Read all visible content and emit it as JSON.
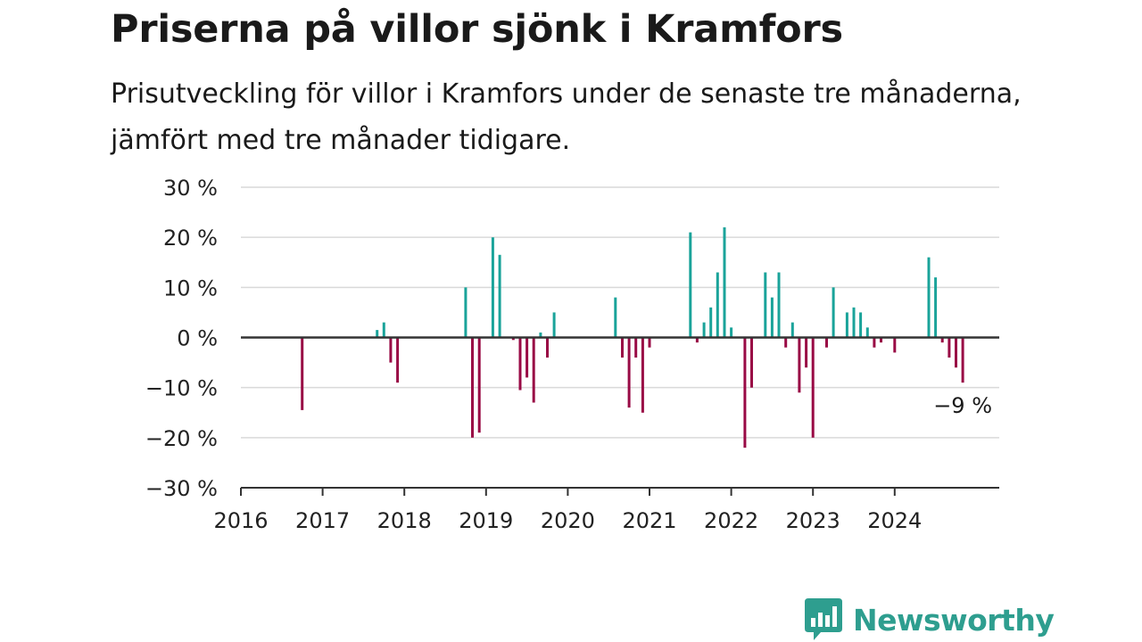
{
  "header": {
    "title": "Priserna på villor sjönk i Kramfors",
    "subtitle": "Prisutveckling för villor i Kramfors under de senaste tre månaderna, jämfört med tre månader tidigare."
  },
  "colors": {
    "positive": "#1aa39a",
    "negative": "#990a45",
    "grid": "#d9d9d9",
    "axis": "#333333"
  },
  "brand": {
    "name": "Newsworthy",
    "icon": "newsworthy-logo-icon"
  },
  "chart_data": {
    "type": "bar",
    "title": "Priserna på villor sjönk i Kramfors",
    "subtitle": "Prisutveckling för villor i Kramfors under de senaste tre månaderna, jämfört med tre månader tidigare.",
    "xlabel": "",
    "ylabel": "",
    "ylim": [
      -30,
      30
    ],
    "y_ticks": [
      30,
      20,
      10,
      0,
      -10,
      -20,
      -30
    ],
    "y_tick_labels": [
      "30 %",
      "20 %",
      "10 %",
      "0 %",
      "−10 %",
      "−20 %",
      "−30 %"
    ],
    "x_ticks": [
      2016,
      2017,
      2018,
      2019,
      2020,
      2021,
      2022,
      2023,
      2024
    ],
    "x_tick_labels": [
      "2016",
      "2017",
      "2018",
      "2019",
      "2020",
      "2021",
      "2022",
      "2023",
      "2024"
    ],
    "grid": true,
    "annotation": {
      "label": "−9 %",
      "x": "2024-11",
      "value": -9
    },
    "x": [
      "2016-10",
      "2017-09",
      "2017-10",
      "2017-11",
      "2017-12",
      "2018-10",
      "2018-11",
      "2018-12",
      "2019-02",
      "2019-03",
      "2019-05",
      "2019-06",
      "2019-07",
      "2019-08",
      "2019-09",
      "2019-10",
      "2019-11",
      "2020-08",
      "2020-09",
      "2020-10",
      "2020-11",
      "2020-12",
      "2021-01",
      "2021-07",
      "2021-08",
      "2021-09",
      "2021-10",
      "2021-11",
      "2021-12",
      "2022-01",
      "2022-03",
      "2022-04",
      "2022-06",
      "2022-07",
      "2022-08",
      "2022-09",
      "2022-10",
      "2022-11",
      "2022-12",
      "2023-01",
      "2023-03",
      "2023-04",
      "2023-06",
      "2023-07",
      "2023-08",
      "2023-09",
      "2023-10",
      "2023-11",
      "2024-01",
      "2024-06",
      "2024-07",
      "2024-08",
      "2024-09",
      "2024-10",
      "2024-11"
    ],
    "values": [
      -14.5,
      1.5,
      3,
      -5,
      -9,
      10,
      -20,
      -19,
      20,
      16.5,
      -0.5,
      -10.5,
      -8,
      -13,
      1,
      -4,
      5,
      8,
      -4,
      -14,
      -4,
      -15,
      -2,
      21,
      -1,
      3,
      6,
      13,
      22,
      2,
      -22,
      -10,
      13,
      8,
      13,
      -2,
      3,
      -11,
      -6,
      -20,
      -2,
      10,
      5,
      6,
      5,
      2,
      -2,
      -1,
      -3,
      16,
      12,
      -1,
      -4,
      -6,
      -9
    ]
  }
}
